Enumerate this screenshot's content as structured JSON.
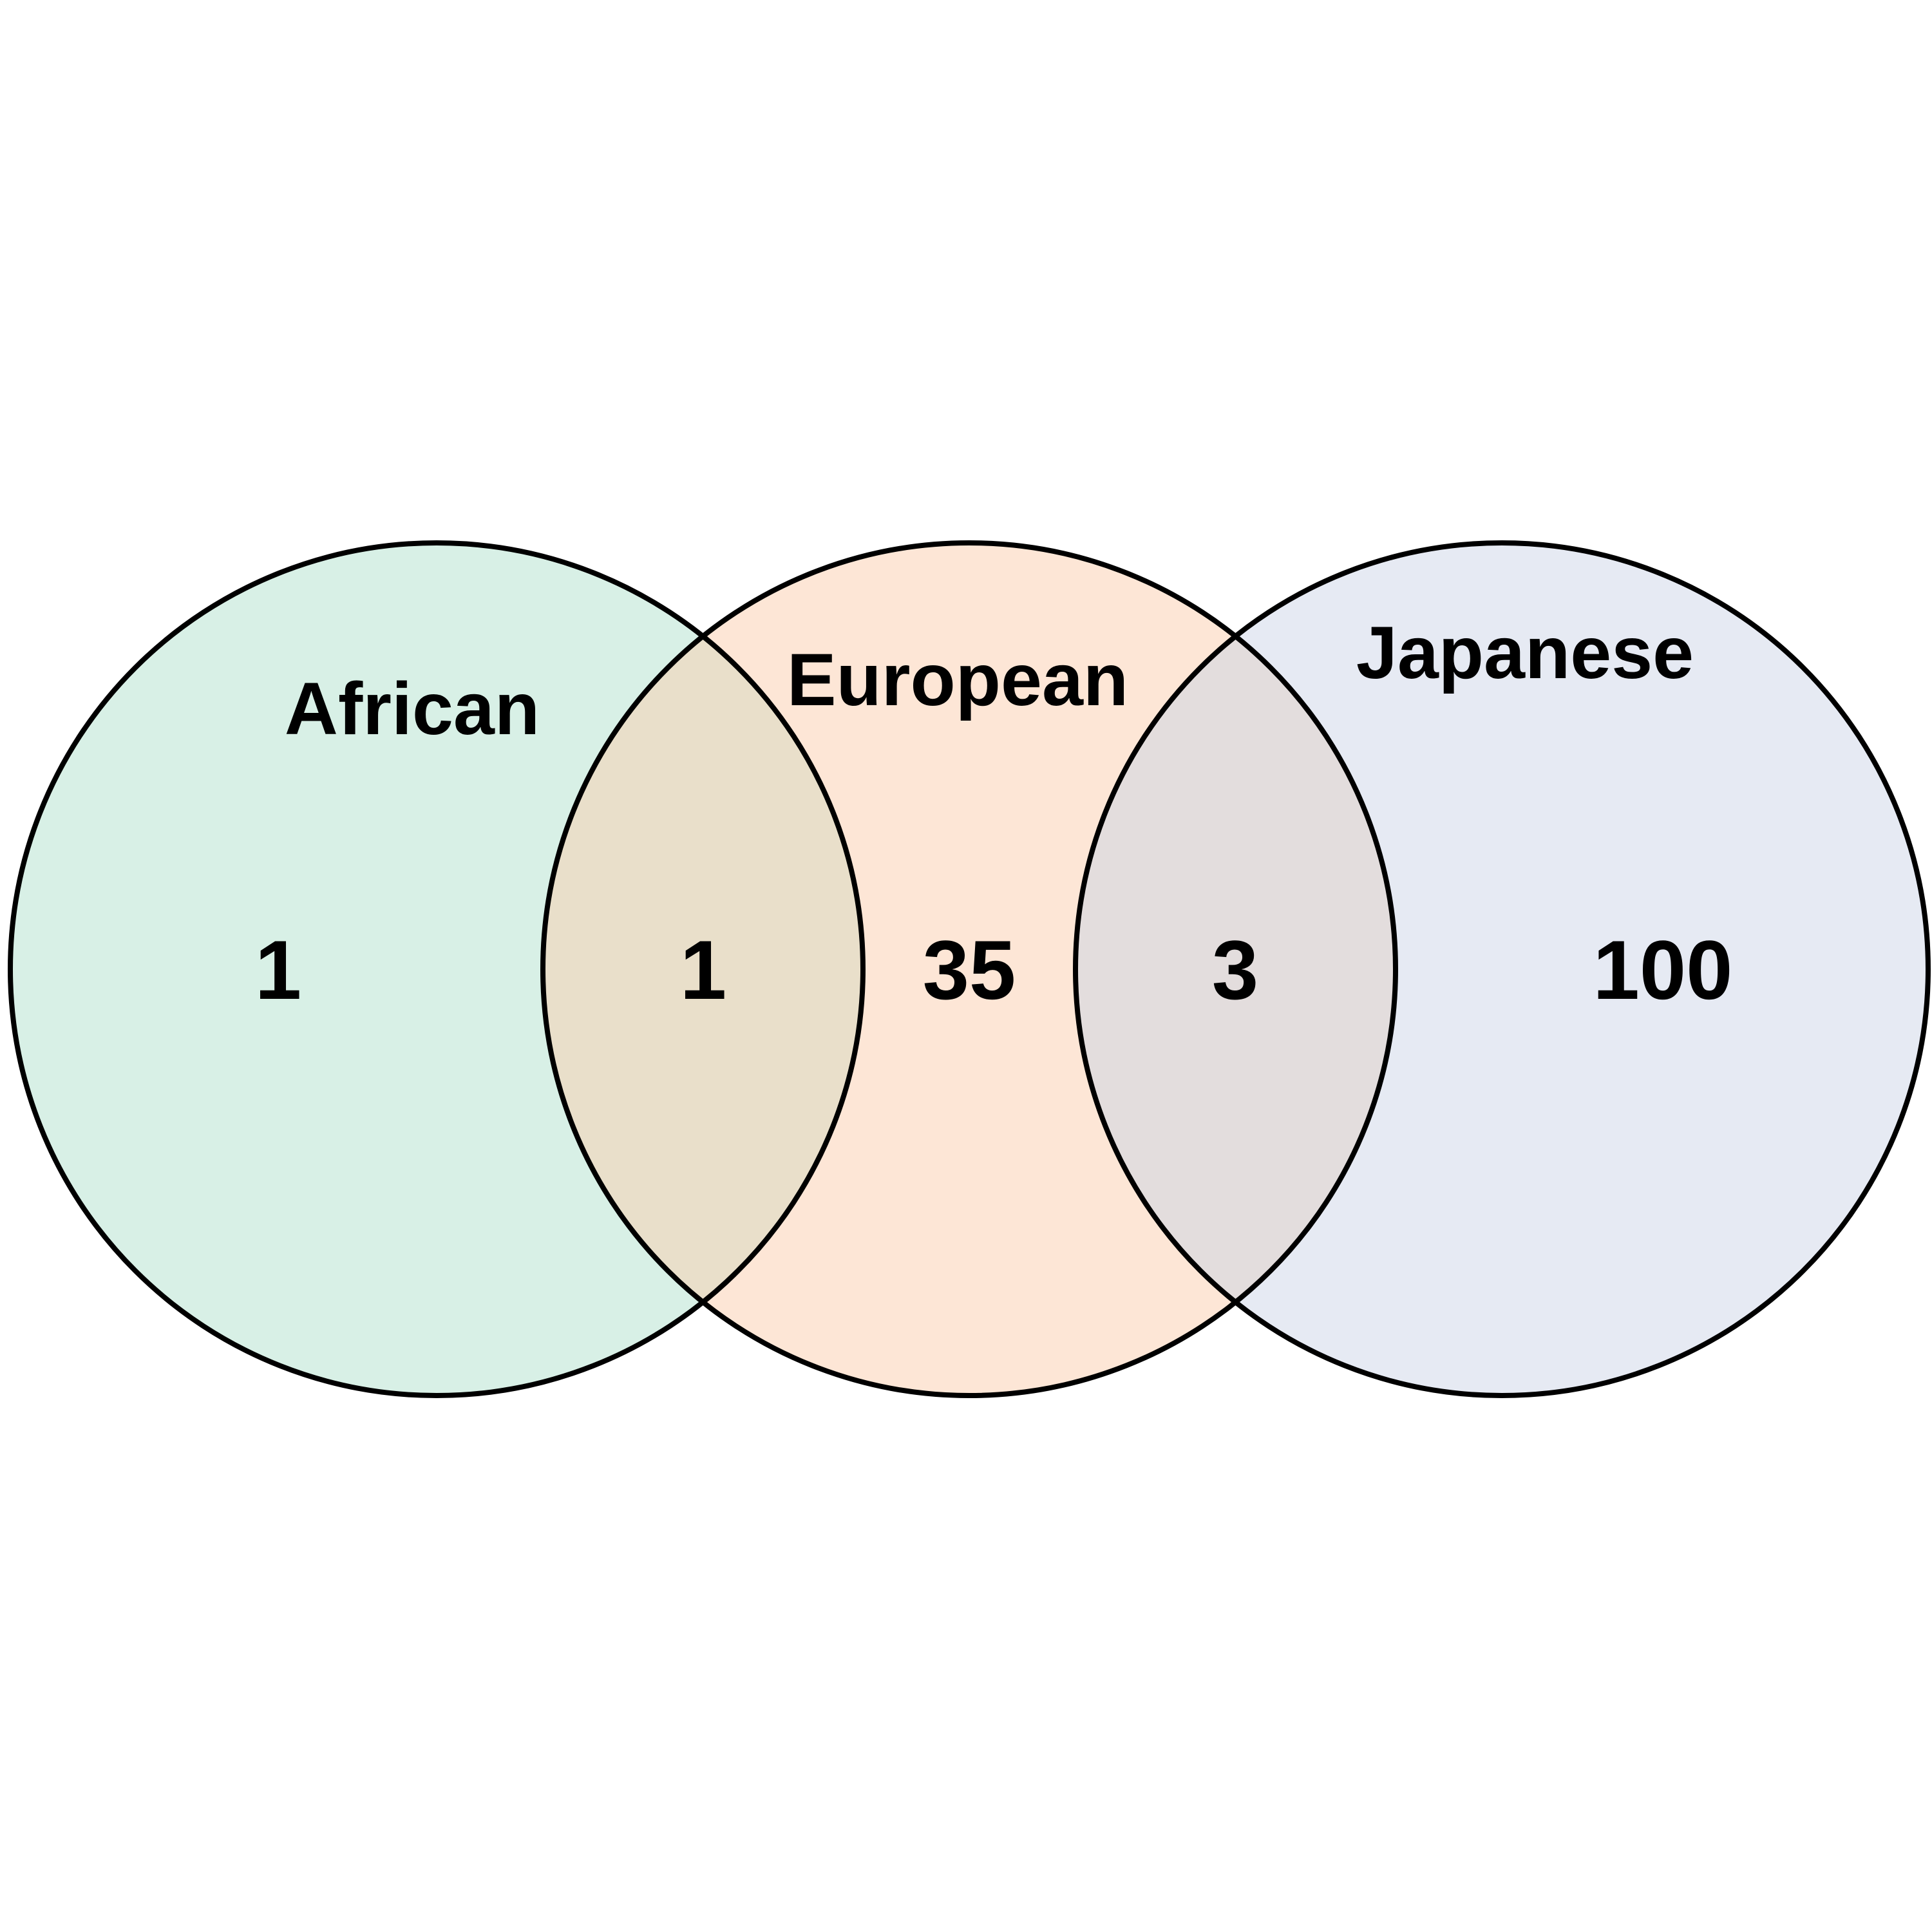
{
  "sets": [
    {
      "id": "african",
      "label": "African",
      "only_count": "1",
      "fill": "#d8f0e6"
    },
    {
      "id": "european",
      "label": "European",
      "only_count": "35",
      "fill": "#fde6d6"
    },
    {
      "id": "japanese",
      "label": "Japanese",
      "only_count": "100",
      "fill": "#e6eaf3"
    }
  ],
  "intersections": [
    {
      "sets": [
        "african",
        "european"
      ],
      "count": "1",
      "fill": "#e9dfca"
    },
    {
      "sets": [
        "european",
        "japanese"
      ],
      "count": "3",
      "fill": "#e3dddd"
    }
  ],
  "outline_color": "#000000"
}
